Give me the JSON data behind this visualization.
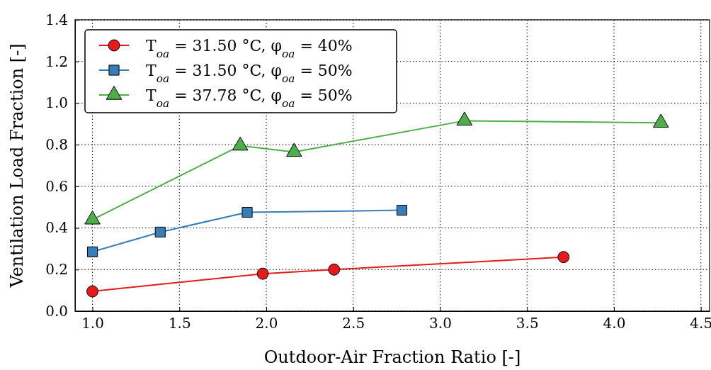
{
  "chart_data": {
    "type": "line",
    "xlabel": "Outdoor-Air Fraction Ratio [-]",
    "ylabel": "Ventilation Load Fraction [-]",
    "xlim": [
      0.9,
      4.55
    ],
    "xticks": [
      {
        "value": 1,
        "label": "1.0"
      },
      1.5,
      {
        "value": 2,
        "label": "2.0"
      },
      2.5,
      {
        "value": 3,
        "label": "3.0"
      },
      3.5,
      {
        "value": 4,
        "label": "4.0"
      },
      4.5
    ],
    "ylim": [
      0,
      1.4
    ],
    "yticks": [
      {
        "value": 0,
        "label": "0.0"
      },
      0.2,
      0.4,
      0.6,
      0.8,
      {
        "value": 1,
        "label": "1.0"
      },
      1.2,
      1.4
    ],
    "grid": true,
    "legend": "top left",
    "line_style": "solid",
    "series": [
      {
        "name": "T$_{oa}$ = 31.50 °C, φ$_{oa}$ = 40%",
        "color": "#e41a1c",
        "marker": "circle",
        "x": [
          1.0,
          1.98,
          2.39,
          3.71
        ],
        "values": [
          0.095,
          0.18,
          0.2,
          0.26
        ]
      },
      {
        "name": "T$_{oa}$ = 31.50 °C, φ$_{oa}$ = 50%",
        "color": "#377eb8",
        "marker": "square",
        "x": [
          1.0,
          1.39,
          1.89,
          2.78
        ],
        "values": [
          0.285,
          0.38,
          0.475,
          0.485
        ]
      },
      {
        "name": "T$_{oa}$ = 37.78 °C, φ$_{oa}$ = 50%",
        "color": "#4daf4a",
        "marker": "triangle",
        "x": [
          1.0,
          1.85,
          2.16,
          3.14,
          4.27
        ],
        "values": [
          0.44,
          0.795,
          0.765,
          0.915,
          0.905
        ]
      }
    ]
  }
}
